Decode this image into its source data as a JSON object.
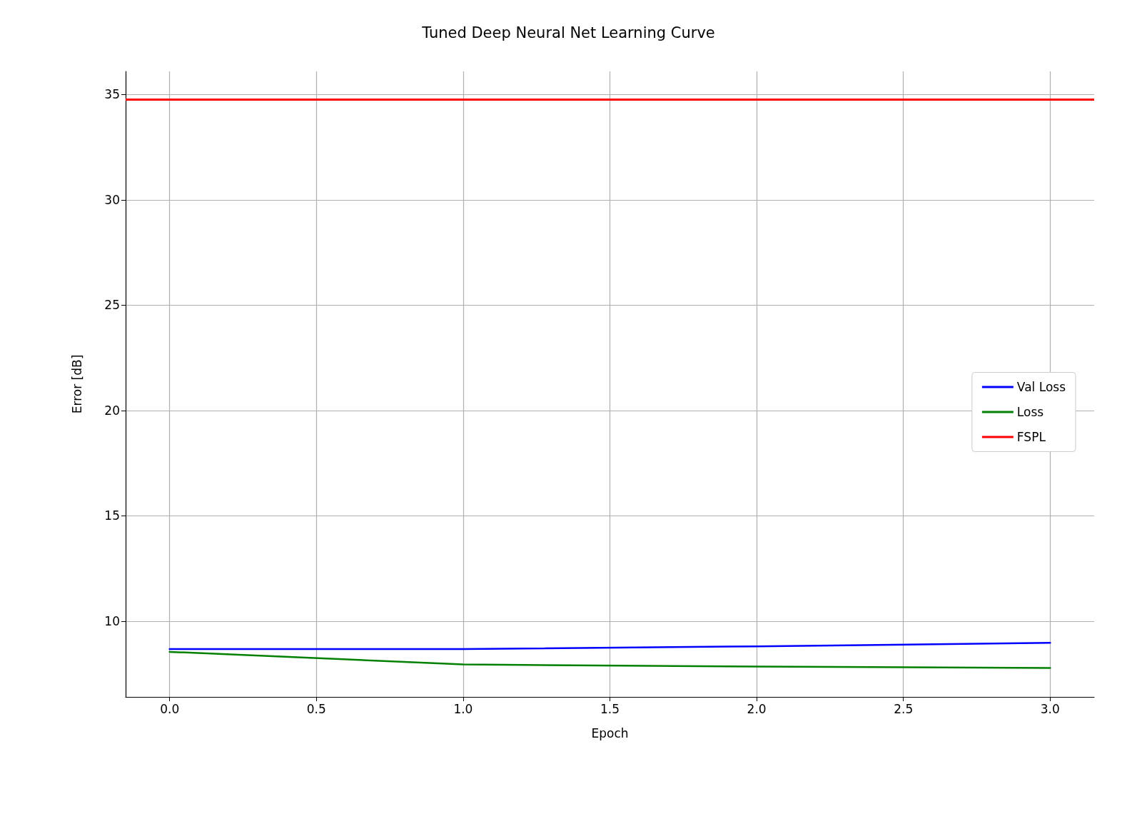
{
  "chart_data": {
    "type": "line",
    "title": "Tuned Deep Neural Net Learning Curve",
    "xlabel": "Epoch",
    "ylabel": "Error [dB]",
    "x": [
      0,
      1,
      2,
      3
    ],
    "series": [
      {
        "name": "Val Loss",
        "color": "#0000ff",
        "values": [
          8.67,
          8.67,
          8.8,
          8.97
        ]
      },
      {
        "name": "Loss",
        "color": "#008000",
        "values": [
          8.54,
          7.94,
          7.84,
          7.77
        ]
      }
    ],
    "ref_lines": [
      {
        "axis": "y",
        "value": 34.77,
        "label": "FSPL",
        "color": "#ff0000"
      }
    ],
    "xlim": [
      -0.15,
      3.15
    ],
    "xticks": [
      {
        "value": 0,
        "label": "0.0"
      },
      {
        "value": 0.5,
        "label": "0.5"
      },
      {
        "value": 1,
        "label": "1.0"
      },
      {
        "value": 1.5,
        "label": "1.5"
      },
      {
        "value": 2,
        "label": "2.0"
      },
      {
        "value": 2.5,
        "label": "2.5"
      },
      {
        "value": 3,
        "label": "3.0"
      }
    ],
    "ylim": [
      6.4,
      36.1
    ],
    "yticks": [
      10,
      15,
      20,
      25,
      30,
      35
    ],
    "grid": true,
    "legend": "right",
    "line_style": "solid",
    "marker": "none"
  }
}
